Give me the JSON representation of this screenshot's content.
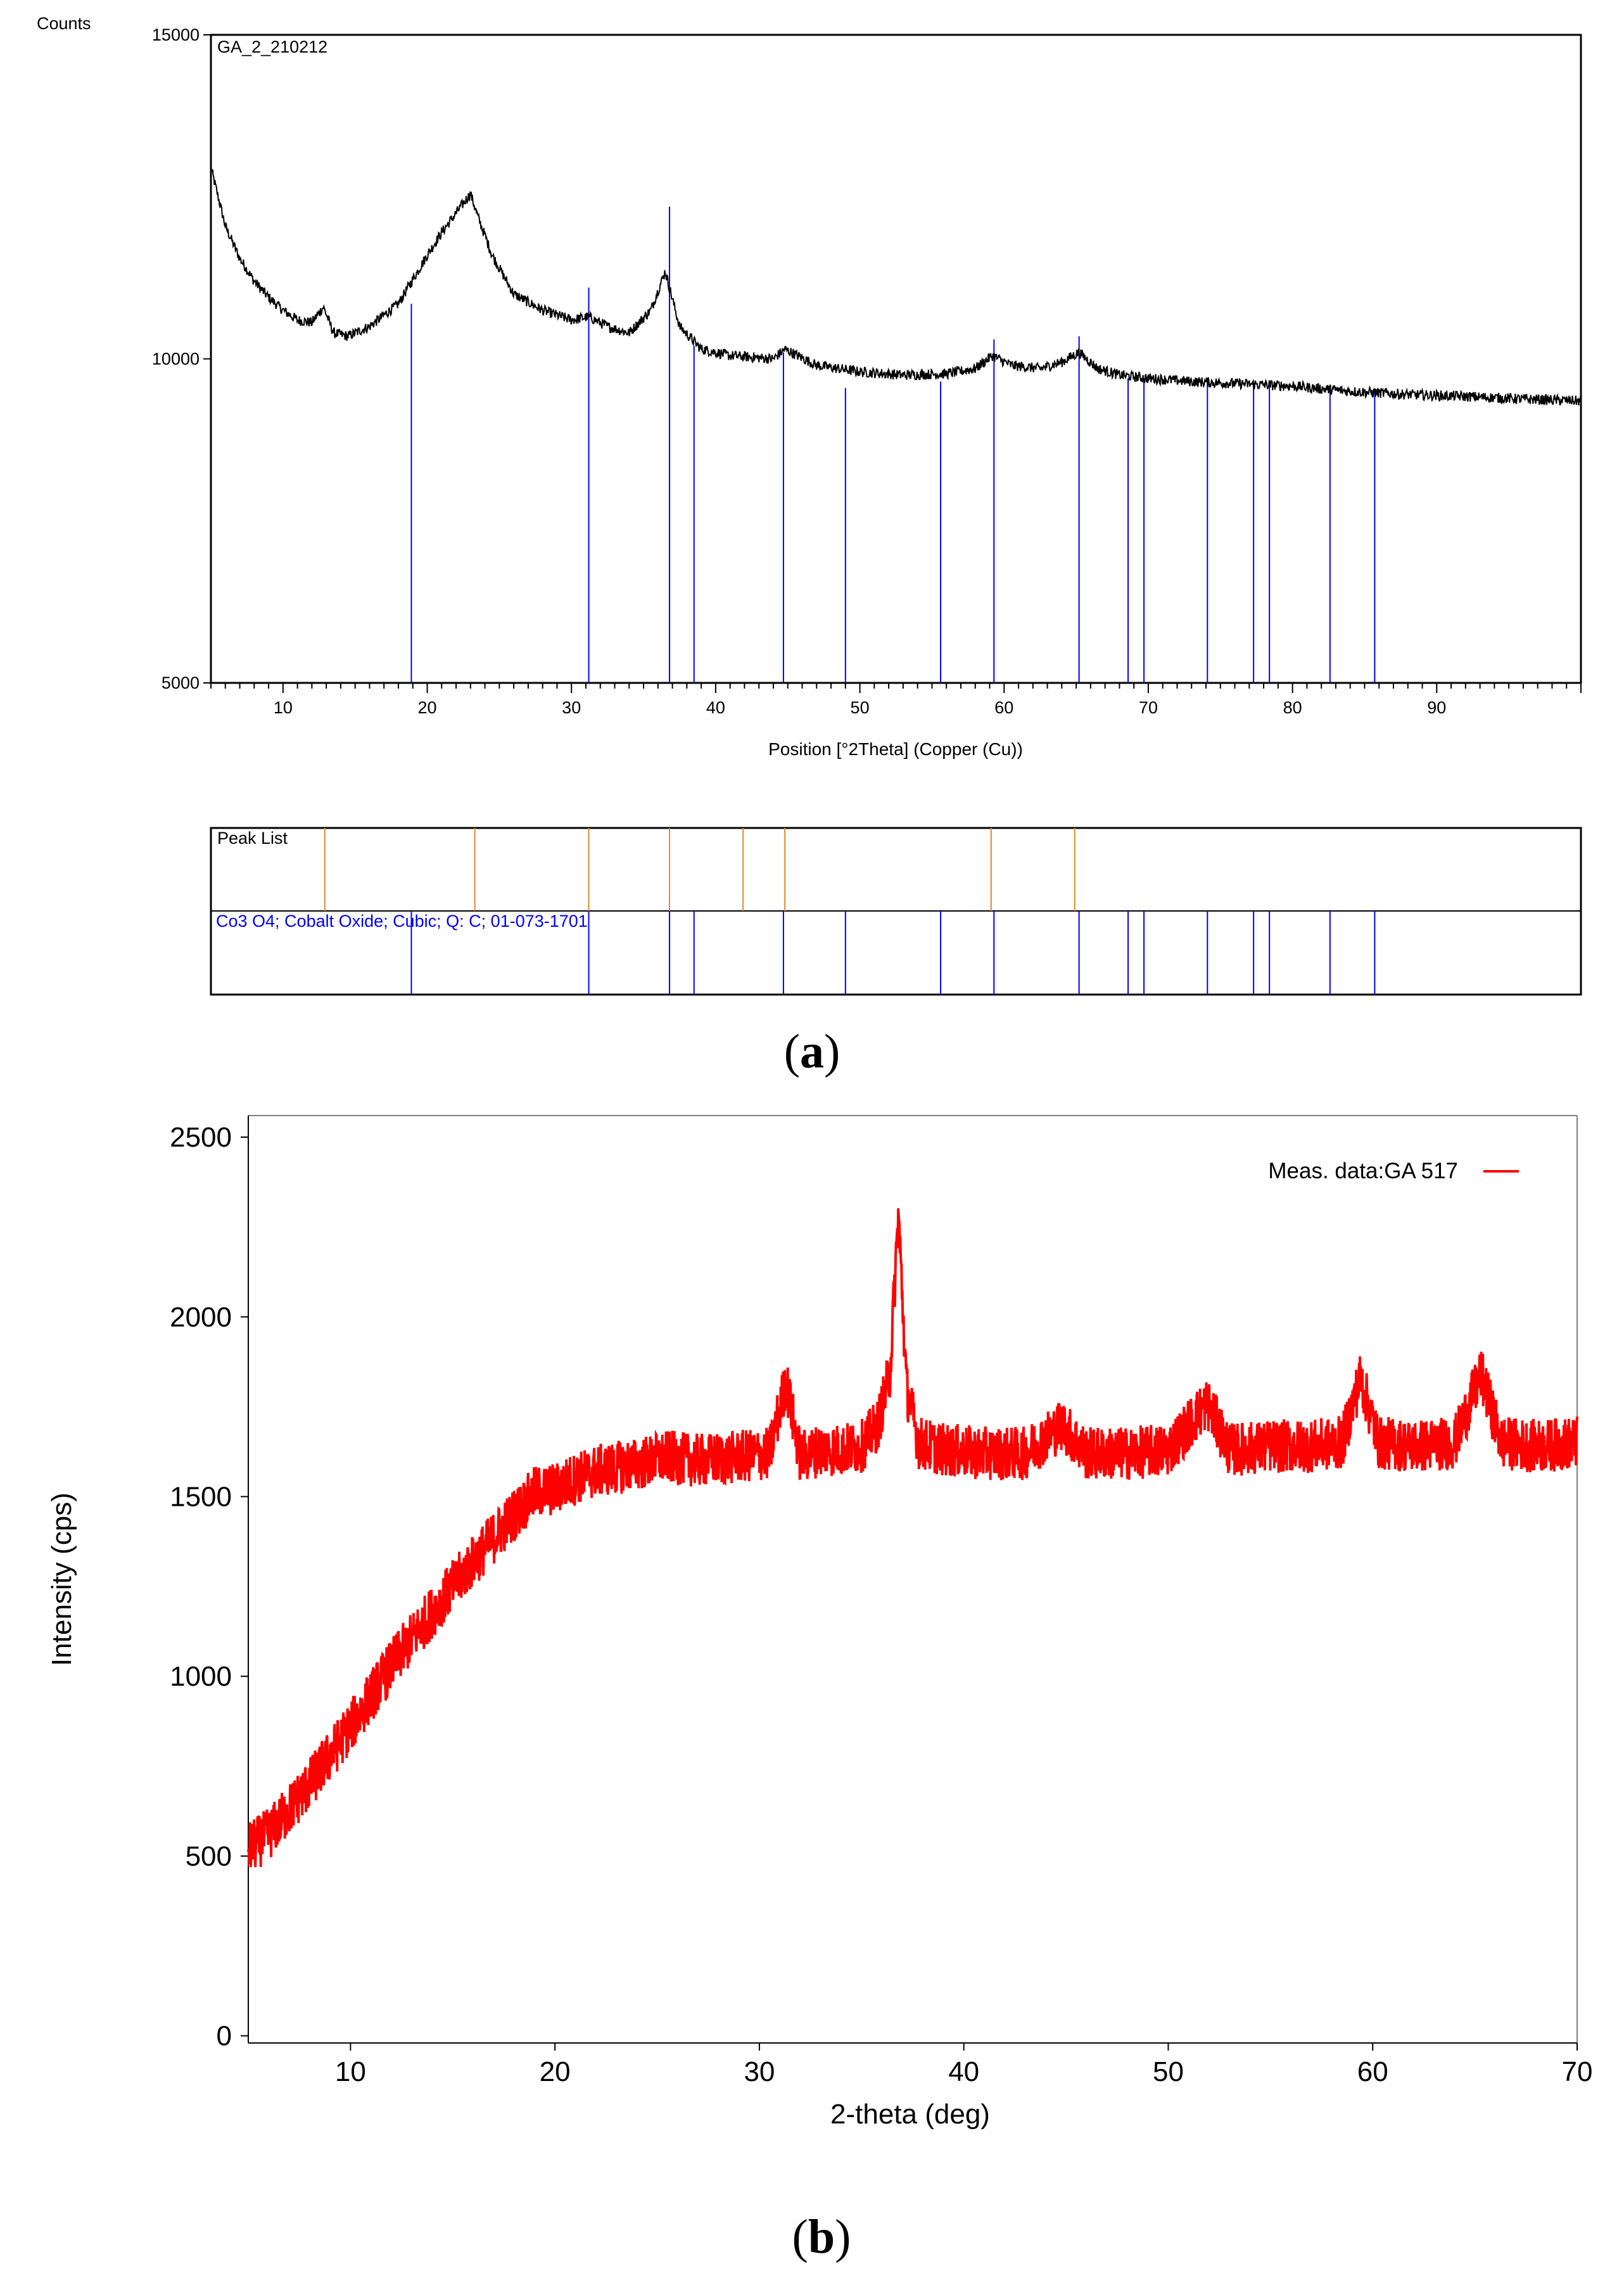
{
  "chart_data": [
    {
      "panel_label": "(a)",
      "panel_letter": "a",
      "type": "line",
      "title": "GA_2_210212",
      "xlabel": "Position [°2Theta] (Copper (Cu))",
      "ylabel": "Counts",
      "xlim": [
        5,
        100
      ],
      "ylim": [
        5000,
        15000
      ],
      "xticks": [
        10,
        20,
        30,
        40,
        50,
        60,
        70,
        80,
        90
      ],
      "yticks": [
        5000,
        10000,
        15000
      ],
      "ytick_labels": [
        "5000",
        "10000",
        "15000"
      ],
      "line_color": "#000000",
      "reference_color": "#0000ff",
      "peaklist_color": "#e08a2a",
      "series": [
        {
          "name": "GA_2_210212",
          "x": [
            5,
            6,
            7,
            8,
            9,
            10,
            11,
            12,
            12.8,
            13.5,
            14.5,
            16,
            18,
            20,
            21,
            22,
            23,
            23.5,
            24.5,
            26,
            28,
            30,
            31.2,
            32.5,
            34,
            35.5,
            36.5,
            37.5,
            39,
            41,
            44,
            44.8,
            47,
            50,
            53,
            56,
            58,
            59.2,
            60.5,
            62.5,
            64,
            65.2,
            66.5,
            68,
            70,
            73,
            76,
            80,
            84,
            88,
            92,
            96,
            100
          ],
          "y": [
            12950,
            12050,
            11550,
            11200,
            10950,
            10750,
            10600,
            10560,
            10800,
            10400,
            10350,
            10500,
            10850,
            11600,
            11950,
            12250,
            12550,
            12200,
            11600,
            11000,
            10750,
            10600,
            10650,
            10500,
            10400,
            10750,
            11350,
            10500,
            10150,
            10050,
            10000,
            10150,
            9900,
            9800,
            9750,
            9770,
            9850,
            10050,
            9900,
            9850,
            9950,
            10100,
            9850,
            9750,
            9700,
            9650,
            9620,
            9580,
            9500,
            9450,
            9420,
            9380,
            9350
          ]
        }
      ],
      "reference_name": "Co3 O4; Cobalt Oxide; Cubic; Q: C; 01-073-1701",
      "reference_peaks": [
        {
          "x": 18.9,
          "top": 10850
        },
        {
          "x": 31.2,
          "top": 11100
        },
        {
          "x": 36.8,
          "top": 12350
        },
        {
          "x": 38.5,
          "top": 10200
        },
        {
          "x": 44.7,
          "top": 10100
        },
        {
          "x": 49.0,
          "top": 9550
        },
        {
          "x": 55.6,
          "top": 9650
        },
        {
          "x": 59.3,
          "top": 10300
        },
        {
          "x": 65.2,
          "top": 10350
        },
        {
          "x": 68.6,
          "top": 9700
        },
        {
          "x": 69.7,
          "top": 9700
        },
        {
          "x": 74.1,
          "top": 9600
        },
        {
          "x": 77.3,
          "top": 9600
        },
        {
          "x": 78.4,
          "top": 9600
        },
        {
          "x": 82.6,
          "top": 9550
        },
        {
          "x": 85.7,
          "top": 9550
        }
      ],
      "peak_list_label": "Peak List",
      "peak_list": [
        12.9,
        23.3,
        31.2,
        36.8,
        41.9,
        44.8,
        59.1,
        64.9
      ]
    },
    {
      "panel_label": "(b)",
      "panel_letter": "b",
      "type": "line",
      "title": "",
      "xlabel": "2-theta (deg)",
      "ylabel": "Intensity (cps)",
      "xlim": [
        5,
        70
      ],
      "ylim": [
        -20,
        2560
      ],
      "xticks": [
        10,
        20,
        30,
        40,
        50,
        60,
        70
      ],
      "yticks": [
        0,
        500,
        1000,
        1500,
        2000,
        2500
      ],
      "legend_position": "top-right",
      "line_color": "#ff0000",
      "series": [
        {
          "name": "Meas. data:GA 517",
          "x": [
            5,
            6,
            8,
            10,
            12,
            14,
            16,
            18,
            19,
            20,
            21,
            22,
            24,
            25.5,
            27,
            29,
            30.5,
            31.3,
            32,
            33,
            34,
            35,
            35.8,
            36.4,
            36.8,
            37.2,
            37.8,
            39,
            41,
            43,
            44.8,
            46,
            48,
            50,
            51.9,
            53,
            55,
            57,
            58.5,
            59.4,
            60.3,
            62,
            64,
            65.3,
            66.3,
            68,
            70
          ],
          "y": [
            520,
            560,
            700,
            860,
            1030,
            1180,
            1320,
            1450,
            1510,
            1520,
            1550,
            1570,
            1590,
            1610,
            1600,
            1610,
            1620,
            1820,
            1610,
            1630,
            1630,
            1640,
            1700,
            1850,
            2290,
            1800,
            1650,
            1630,
            1620,
            1620,
            1700,
            1620,
            1620,
            1630,
            1760,
            1630,
            1640,
            1640,
            1650,
            1830,
            1650,
            1640,
            1650,
            1840,
            1650,
            1640,
            1650
          ]
        }
      ]
    }
  ]
}
